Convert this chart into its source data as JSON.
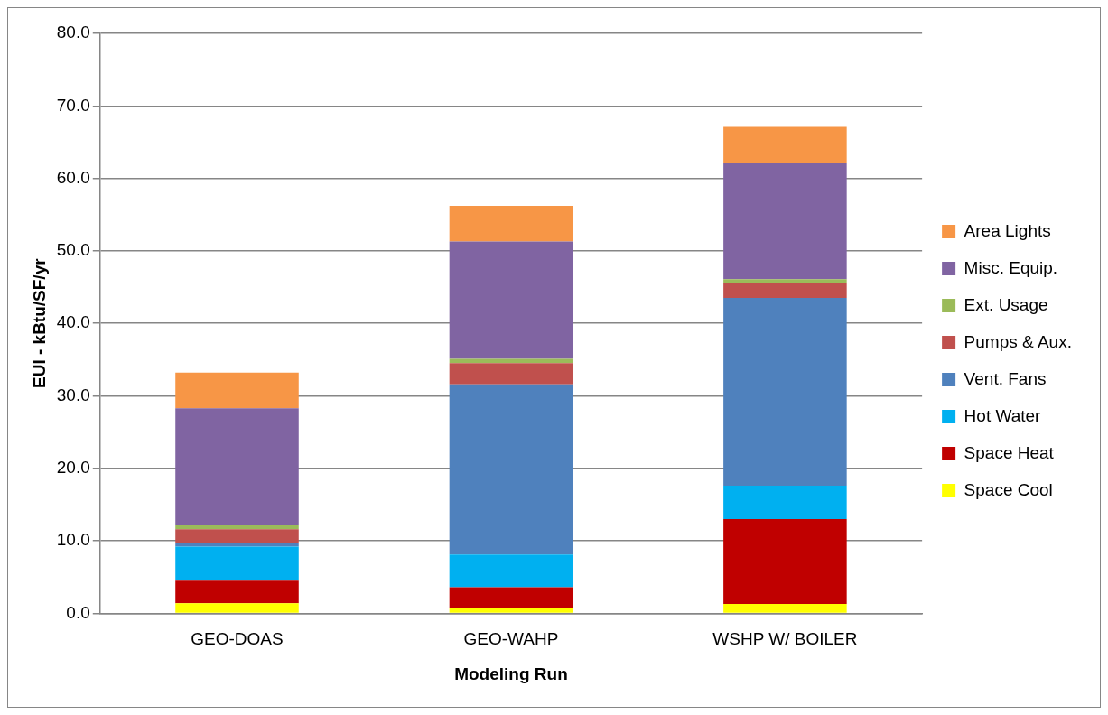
{
  "chart_data": {
    "type": "bar",
    "stacked": true,
    "xlabel": "Modeling Run",
    "ylabel": "EUI - kBtu/SF/yr",
    "categories": [
      "GEO-DOAS",
      "GEO-WAHP",
      "WSHP W/ BOILER"
    ],
    "series": [
      {
        "name": "Space Cool",
        "color": "#ffff00",
        "values": [
          1.4,
          0.8,
          1.3
        ]
      },
      {
        "name": "Space Heat",
        "color": "#c00000",
        "values": [
          3.1,
          2.8,
          11.7
        ]
      },
      {
        "name": "Hot Water",
        "color": "#00b0f0",
        "values": [
          4.7,
          4.5,
          4.6
        ]
      },
      {
        "name": "Vent. Fans",
        "color": "#4f81bd",
        "values": [
          0.5,
          23.5,
          25.9
        ]
      },
      {
        "name": "Pumps & Aux.",
        "color": "#c0504d",
        "values": [
          1.9,
          2.9,
          2.1
        ]
      },
      {
        "name": "Ext. Usage",
        "color": "#9bbb59",
        "values": [
          0.6,
          0.6,
          0.5
        ]
      },
      {
        "name": "Misc. Equip.",
        "color": "#8064a2",
        "values": [
          16.1,
          16.2,
          16.1
        ]
      },
      {
        "name": "Area Lights",
        "color": "#f79646",
        "values": [
          4.9,
          4.9,
          4.9
        ]
      }
    ],
    "ylim": [
      0,
      80
    ],
    "yticks": [
      {
        "value": 0,
        "label": "0.0"
      },
      {
        "value": 10,
        "label": "10.0"
      },
      {
        "value": 20,
        "label": "20.0"
      },
      {
        "value": 30,
        "label": "30.0"
      },
      {
        "value": 40,
        "label": "40.0"
      },
      {
        "value": 50,
        "label": "50.0"
      },
      {
        "value": 60,
        "label": "60.0"
      },
      {
        "value": 70,
        "label": "70.0"
      },
      {
        "value": 80,
        "label": "80.0"
      }
    ],
    "grid": "y",
    "legend": "right"
  }
}
